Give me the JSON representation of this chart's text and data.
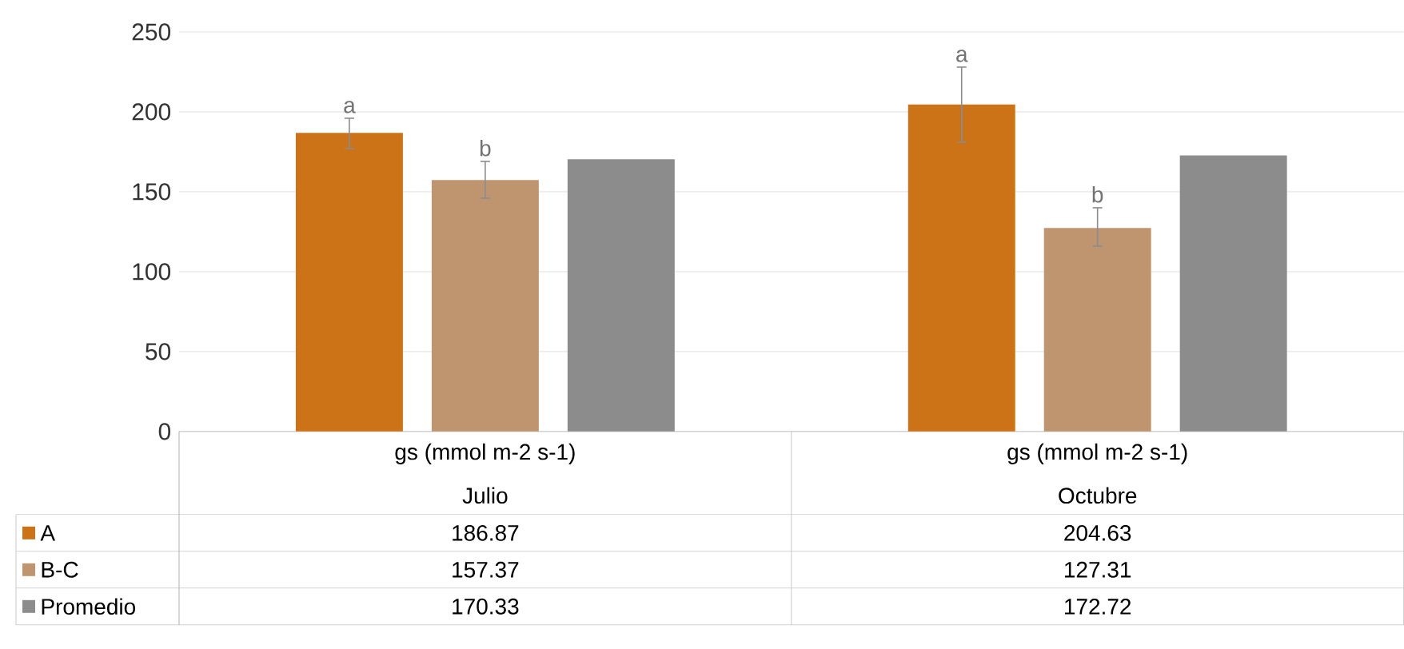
{
  "chart_data": {
    "type": "bar",
    "categories": [
      "Julio",
      "Octubre"
    ],
    "series": [
      {
        "name": "A",
        "color": "#cc7217",
        "values": [
          186.87,
          204.63
        ],
        "errors": [
          [
            177,
            196
          ],
          [
            181,
            228
          ]
        ]
      },
      {
        "name": "B-C",
        "color": "#bf9570",
        "values": [
          157.37,
          127.31
        ],
        "errors": [
          [
            146,
            169
          ],
          [
            116,
            140
          ]
        ]
      },
      {
        "name": "Promedio",
        "color": "#8c8c8c",
        "values": [
          170.33,
          172.72
        ]
      }
    ],
    "ylim": [
      0,
      250
    ],
    "yticks": [
      0,
      50,
      100,
      150,
      200,
      250
    ],
    "grid": "y",
    "legend": "bottom",
    "data_labels": true,
    "annotations": [
      "gs (mmol m-2 s-1)",
      "gs (mmol m-2 s-1)",
      "a",
      "b",
      "a",
      "b"
    ]
  }
}
